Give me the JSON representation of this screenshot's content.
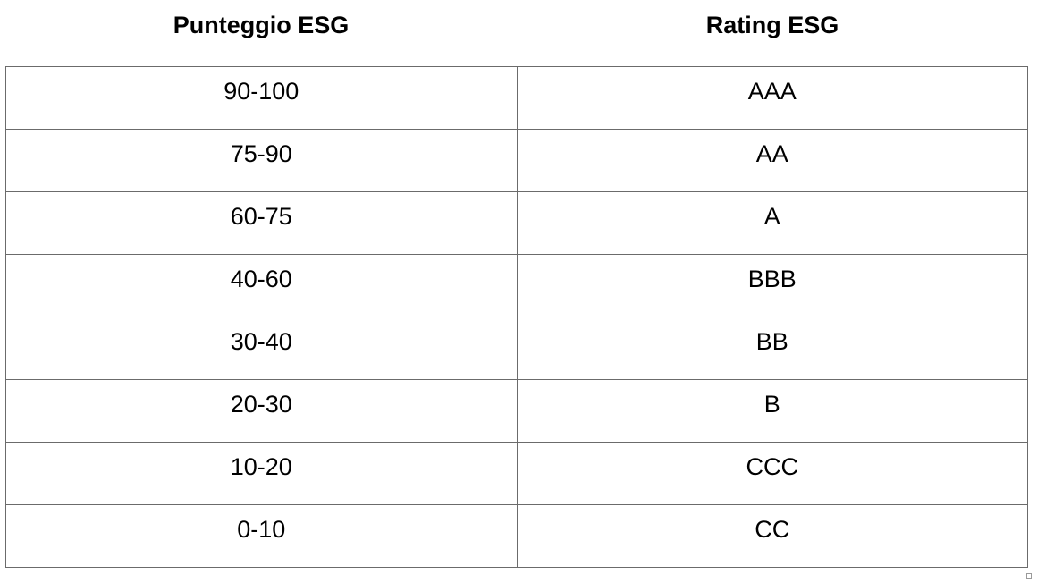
{
  "headers": {
    "score": "Punteggio ESG",
    "rating": "Rating ESG"
  },
  "rows": [
    {
      "score": "90-100",
      "rating": "AAA"
    },
    {
      "score": "75-90",
      "rating": "AA"
    },
    {
      "score": "60-75",
      "rating": "A"
    },
    {
      "score": "40-60",
      "rating": "BBB"
    },
    {
      "score": "30-40",
      "rating": "BB"
    },
    {
      "score": "20-30",
      "rating": "B"
    },
    {
      "score": "10-20",
      "rating": "CCC"
    },
    {
      "score": "0-10",
      "rating": "CC"
    }
  ]
}
